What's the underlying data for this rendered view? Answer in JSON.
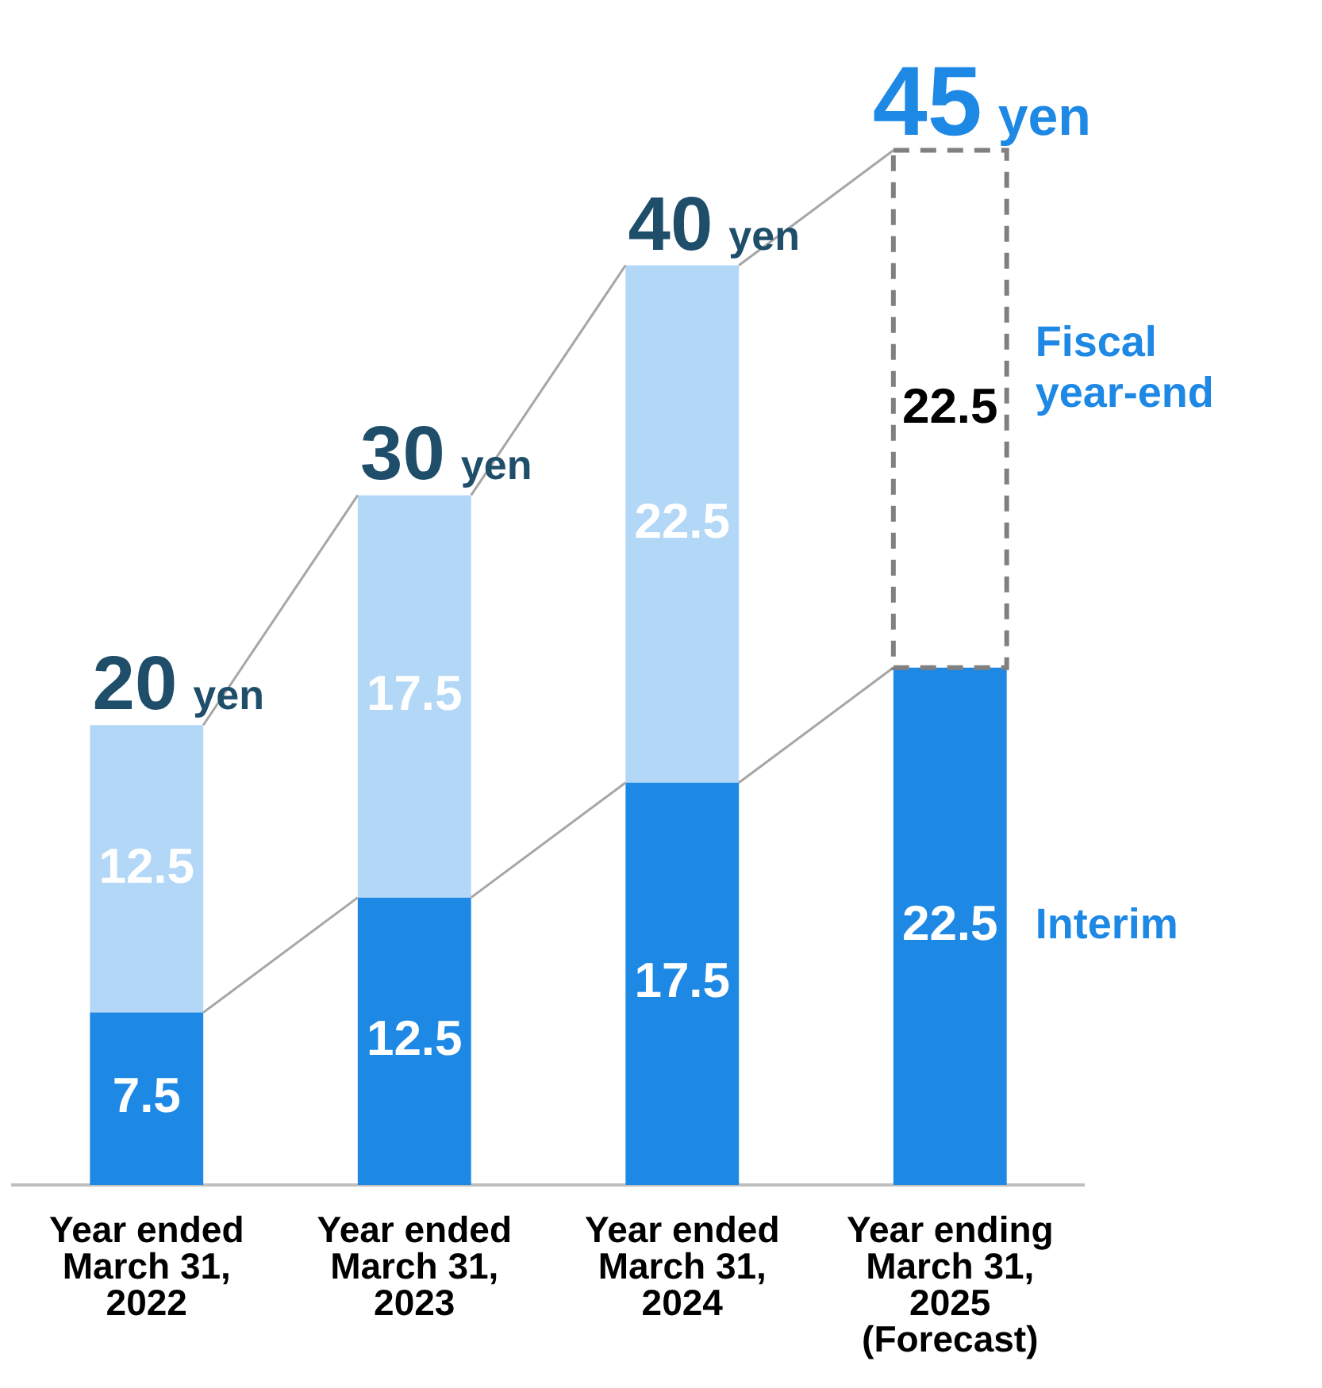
{
  "chart_data": {
    "type": "bar",
    "stacked": true,
    "data_labels": true,
    "legend": false,
    "grid": false,
    "categories": [
      "Year ended\nMarch 31,\n2022",
      "Year ended\nMarch 31,\n2023",
      "Year ended\nMarch 31,\n2024",
      "Year ending\nMarch 31,\n2025\n(Forecast)"
    ],
    "series": [
      {
        "name": "Interim",
        "color": "#1e88e5",
        "values": [
          7.5,
          12.5,
          17.5,
          22.5
        ]
      },
      {
        "name": "Fiscal year-end",
        "color": "#b3d7f7",
        "colors": [
          "#b3d7f7",
          "#b3d7f7",
          "#b3d7f7",
          "#ffffff"
        ],
        "line_style": "dashed",
        "values": [
          12.5,
          17.5,
          22.5,
          22.5
        ]
      }
    ],
    "totals": [
      "20 yen",
      "30 yen",
      "40 yen",
      "45 yen"
    ]
  }
}
